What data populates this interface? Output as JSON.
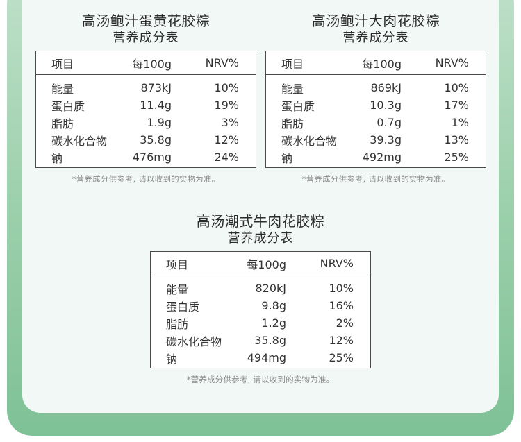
{
  "column_headers": [
    "项目",
    "每100g",
    "NRV%"
  ],
  "note": "*营养成分供参考, 请以收到的实物为准。",
  "products": [
    {
      "title": "高汤鲍汁蛋黄花胶粽",
      "subtitle": "营养成分表",
      "rows": [
        [
          "能量",
          "873kJ",
          "10%"
        ],
        [
          "蛋白质",
          "11.4g",
          "19%"
        ],
        [
          "脂肪",
          "1.9g",
          "3%"
        ],
        [
          "碳水化合物",
          "35.8g",
          "12%"
        ],
        [
          "钠",
          "476mg",
          "24%"
        ]
      ]
    },
    {
      "title": "高汤鲍汁大肉花胶粽",
      "subtitle": "营养成分表",
      "rows": [
        [
          "能量",
          "869kJ",
          "10%"
        ],
        [
          "蛋白质",
          "10.3g",
          "17%"
        ],
        [
          "脂肪",
          "0.7g",
          "1%"
        ],
        [
          "碳水化合物",
          "39.3g",
          "13%"
        ],
        [
          "钠",
          "492mg",
          "25%"
        ]
      ]
    },
    {
      "title": "高汤潮式牛肉花胶粽",
      "subtitle": "营养成分表",
      "rows": [
        [
          "能量",
          "820kJ",
          "10%"
        ],
        [
          "蛋白质",
          "9.8g",
          "16%"
        ],
        [
          "脂肪",
          "1.2g",
          "2%"
        ],
        [
          "碳水化合物",
          "35.8g",
          "12%"
        ],
        [
          "钠",
          "494mg",
          "25%"
        ]
      ]
    }
  ]
}
